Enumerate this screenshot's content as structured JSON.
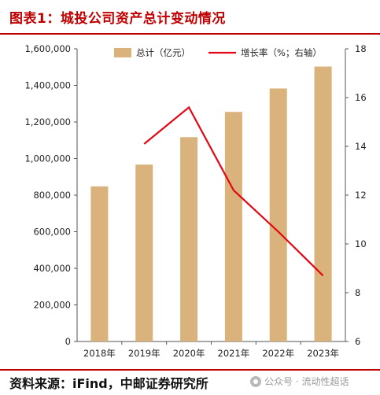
{
  "header": {
    "title": "图表1：城投公司资产总计变动情况"
  },
  "footer": {
    "source": "资料来源：iFind，中邮证券研究所",
    "watermark": "公众号 · 流动性超话",
    "watermark_icon": "wechat-icon"
  },
  "colors": {
    "bar": "#D9B37B",
    "line": "#E30613",
    "accent": "#C00000"
  },
  "chart_data": {
    "type": "bar",
    "categories": [
      "2018年",
      "2019年",
      "2020年",
      "2021年",
      "2022年",
      "2023年"
    ],
    "series": [
      {
        "name": "总计（亿元）",
        "type": "bar",
        "axis": "left",
        "values": [
          848000,
          967000,
          1117000,
          1255000,
          1383000,
          1503000
        ]
      },
      {
        "name": "增长率（%；右轴）",
        "type": "line",
        "axis": "right",
        "values": [
          null,
          14.1,
          15.6,
          12.2,
          10.5,
          8.7
        ]
      }
    ],
    "y_left": {
      "min": 0,
      "max": 1600000,
      "ticks": [
        "0",
        "200,000",
        "400,000",
        "600,000",
        "800,000",
        "1,000,000",
        "1,200,000",
        "1,400,000",
        "1,600,000"
      ]
    },
    "y_right": {
      "min": 6,
      "max": 18,
      "ticks": [
        "6",
        "8",
        "10",
        "12",
        "14",
        "16",
        "18"
      ]
    },
    "legend_position": "top",
    "grid": false
  }
}
